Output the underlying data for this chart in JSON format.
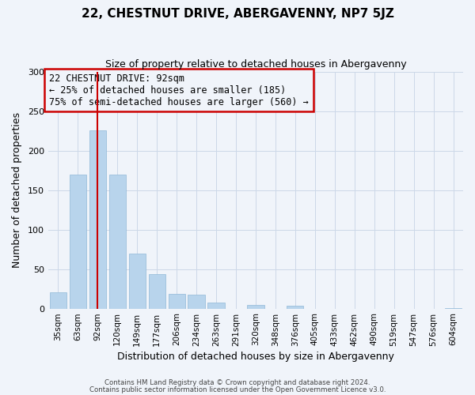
{
  "title": "22, CHESTNUT DRIVE, ABERGAVENNY, NP7 5JZ",
  "subtitle": "Size of property relative to detached houses in Abergavenny",
  "xlabel": "Distribution of detached houses by size in Abergavenny",
  "ylabel": "Number of detached properties",
  "categories": [
    "35sqm",
    "63sqm",
    "92sqm",
    "120sqm",
    "149sqm",
    "177sqm",
    "206sqm",
    "234sqm",
    "263sqm",
    "291sqm",
    "320sqm",
    "348sqm",
    "376sqm",
    "405sqm",
    "433sqm",
    "462sqm",
    "490sqm",
    "519sqm",
    "547sqm",
    "576sqm",
    "604sqm"
  ],
  "values": [
    21,
    170,
    226,
    170,
    70,
    44,
    19,
    18,
    8,
    0,
    5,
    0,
    4,
    0,
    0,
    0,
    0,
    0,
    0,
    0,
    1
  ],
  "bar_color": "#b8d4ec",
  "bar_edge_color": "#90b8d8",
  "highlight_bar_index": 2,
  "highlight_line_color": "#cc0000",
  "annotation_line1": "22 CHESTNUT DRIVE: 92sqm",
  "annotation_line2": "← 25% of detached houses are smaller (185)",
  "annotation_line3": "75% of semi-detached houses are larger (560) →",
  "annotation_box_edge_color": "#cc0000",
  "annotation_fontsize": 8.5,
  "ylim": [
    0,
    300
  ],
  "yticks": [
    0,
    50,
    100,
    150,
    200,
    250,
    300
  ],
  "footer_line1": "Contains HM Land Registry data © Crown copyright and database right 2024.",
  "footer_line2": "Contains public sector information licensed under the Open Government Licence v3.0.",
  "grid_color": "#ccd8e8",
  "background_color": "#f0f4fa",
  "title_fontsize": 11,
  "subtitle_fontsize": 9,
  "xlabel_fontsize": 9,
  "ylabel_fontsize": 9,
  "tick_fontsize": 7.5
}
